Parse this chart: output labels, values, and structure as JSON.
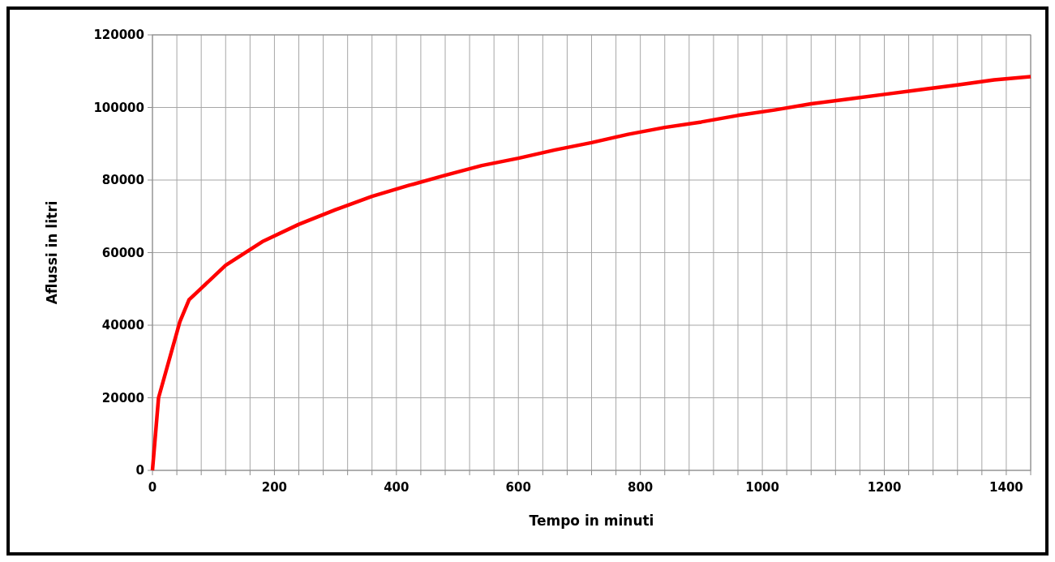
{
  "chart_data": {
    "type": "line",
    "xlabel": "Tempo in minuti",
    "ylabel": "Aflussi in litri",
    "xlim": [
      0,
      1440
    ],
    "ylim": [
      0,
      120000
    ],
    "xticks": [
      0,
      {
        "value": 40,
        "label": null
      },
      {
        "value": 80,
        "label": null
      },
      {
        "value": 120,
        "label": null
      },
      {
        "value": 160,
        "label": null
      },
      200,
      {
        "value": 240,
        "label": null
      },
      {
        "value": 280,
        "label": null
      },
      {
        "value": 320,
        "label": null
      },
      {
        "value": 360,
        "label": null
      },
      400,
      {
        "value": 440,
        "label": null
      },
      {
        "value": 480,
        "label": null
      },
      {
        "value": 520,
        "label": null
      },
      {
        "value": 560,
        "label": null
      },
      600,
      {
        "value": 640,
        "label": null
      },
      {
        "value": 680,
        "label": null
      },
      {
        "value": 720,
        "label": null
      },
      {
        "value": 760,
        "label": null
      },
      800,
      {
        "value": 840,
        "label": null
      },
      {
        "value": 880,
        "label": null
      },
      {
        "value": 920,
        "label": null
      },
      {
        "value": 960,
        "label": null
      },
      1000,
      {
        "value": 1040,
        "label": null
      },
      {
        "value": 1080,
        "label": null
      },
      {
        "value": 1120,
        "label": null
      },
      {
        "value": 1160,
        "label": null
      },
      1200,
      {
        "value": 1240,
        "label": null
      },
      {
        "value": 1280,
        "label": null
      },
      {
        "value": 1320,
        "label": null
      },
      {
        "value": 1360,
        "label": null
      },
      1400,
      {
        "value": 1440,
        "label": null
      }
    ],
    "yticks": [
      0,
      20000,
      40000,
      60000,
      80000,
      100000,
      120000
    ],
    "grid": true,
    "marker": "none",
    "line_style": "solid",
    "x": [
      0,
      10,
      45,
      60,
      120,
      180,
      240,
      300,
      360,
      420,
      480,
      540,
      600,
      660,
      720,
      780,
      840,
      900,
      960,
      1020,
      1080,
      1140,
      1200,
      1260,
      1320,
      1380,
      1440
    ],
    "series": [
      {
        "color": "#ff0000",
        "values": [
          0,
          20000,
          41000,
          47000,
          56500,
          63000,
          67800,
          71800,
          75500,
          78500,
          81300,
          84000,
          86000,
          88300,
          90300,
          92600,
          94500,
          96000,
          97800,
          99300,
          101000,
          102300,
          103600,
          104900,
          106200,
          107600,
          108500
        ]
      }
    ]
  }
}
